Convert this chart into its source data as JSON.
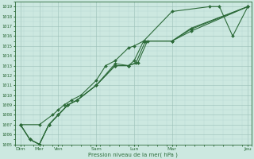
{
  "background_color": "#cce8e0",
  "grid_color_major": "#9bbfb8",
  "grid_color_minor": "#b8d8d2",
  "line_color": "#2d6b3a",
  "xlabel": "Pression niveau de la mer( hPa )",
  "ylim": [
    1005,
    1019.5
  ],
  "xlim": [
    0,
    12.5
  ],
  "yticks": [
    1005,
    1006,
    1007,
    1008,
    1009,
    1010,
    1011,
    1012,
    1013,
    1014,
    1015,
    1016,
    1017,
    1018,
    1019
  ],
  "xtick_positions": [
    0.3,
    1.3,
    2.3,
    4.3,
    6.3,
    8.3,
    12.3
  ],
  "xtick_labels": [
    "Dim",
    "Mer",
    "Ven",
    "Sam",
    "Lun",
    "Mar",
    "Jeu"
  ],
  "line1_x": [
    0.3,
    1.3,
    2.0,
    2.3,
    2.6,
    3.0,
    3.5,
    4.3,
    4.8,
    5.3,
    6.0,
    6.3,
    6.8,
    8.3,
    10.3,
    10.8,
    11.5,
    12.3
  ],
  "line1_y": [
    1007,
    1007,
    1008,
    1008.5,
    1009,
    1009.5,
    1010,
    1011.5,
    1013,
    1013.5,
    1014.8,
    1015.0,
    1015.5,
    1018.5,
    1019.0,
    1019.0,
    1016.0,
    1019.0
  ],
  "line2_x": [
    0.3,
    0.8,
    1.3,
    1.8,
    2.3,
    2.8,
    3.3,
    4.3,
    5.3,
    6.0,
    6.3,
    6.8,
    8.3,
    9.3,
    12.3
  ],
  "line2_y": [
    1007,
    1005.5,
    1005,
    1007,
    1008,
    1009,
    1009.5,
    1011,
    1013.2,
    1013.0,
    1013.5,
    1015.5,
    1015.5,
    1016.5,
    1019.0
  ],
  "line3_x": [
    0.3,
    0.8,
    1.3,
    1.8,
    2.3,
    2.8,
    3.3,
    4.3,
    5.3,
    6.0,
    6.4,
    6.9,
    8.3,
    9.3,
    12.3
  ],
  "line3_y": [
    1007,
    1005.5,
    1005,
    1007,
    1008,
    1009,
    1009.5,
    1011,
    1013.0,
    1013.0,
    1013.3,
    1015.5,
    1015.5,
    1016.7,
    1019.0
  ],
  "line4_x": [
    0.3,
    0.8,
    1.3,
    1.8,
    2.3,
    2.8,
    3.3,
    4.3,
    5.3,
    6.0,
    6.5,
    7.0,
    8.3,
    9.3,
    12.3
  ],
  "line4_y": [
    1007,
    1005.5,
    1005,
    1007,
    1008,
    1009,
    1009.5,
    1011,
    1013.0,
    1013.0,
    1013.3,
    1015.5,
    1015.5,
    1016.8,
    1019.0
  ]
}
